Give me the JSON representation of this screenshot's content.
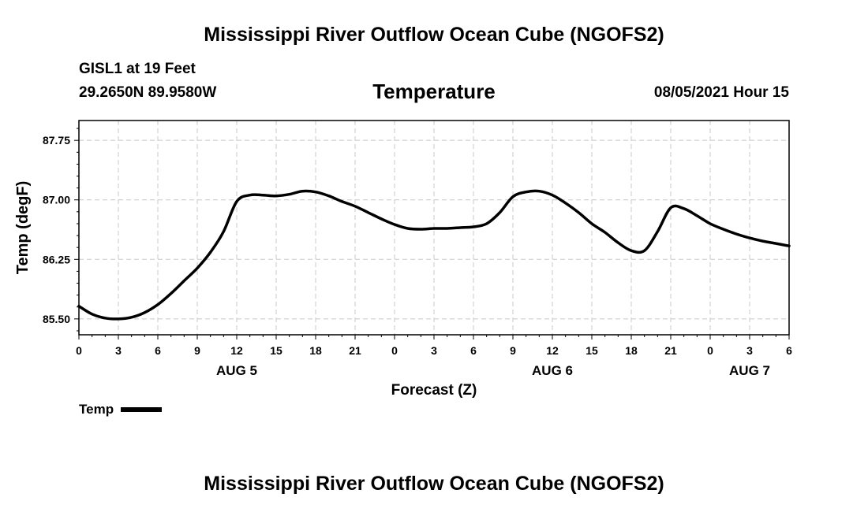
{
  "chart_data": {
    "type": "line",
    "title": "Mississippi River Outflow Ocean Cube (NGOFS2)",
    "footer_title": "Mississippi River Outflow Ocean Cube (NGOFS2)",
    "station": "GISL1 at 19 Feet",
    "coordinates": "29.2650N  89.9580W",
    "subtitle": "Temperature",
    "timestamp": "08/05/2021 Hour 15",
    "xlabel": "Forecast (Z)",
    "ylabel": "Temp (degF)",
    "xlim": [
      0,
      54
    ],
    "ylim": [
      85.3,
      88.0
    ],
    "x_tick_values": [
      0,
      3,
      6,
      9,
      12,
      15,
      18,
      21,
      24,
      27,
      30,
      33,
      36,
      39,
      42,
      45,
      48,
      51,
      54
    ],
    "x_tick_labels": [
      "0",
      "3",
      "6",
      "9",
      "12",
      "15",
      "18",
      "21",
      "0",
      "3",
      "6",
      "9",
      "12",
      "15",
      "18",
      "21",
      "0",
      "3",
      "6"
    ],
    "day_labels": [
      {
        "x": 12,
        "label": "AUG 5"
      },
      {
        "x": 36,
        "label": "AUG 6"
      },
      {
        "x": 51,
        "label": "AUG 7"
      }
    ],
    "y_tick_values": [
      85.5,
      86.25,
      87.0,
      87.75
    ],
    "y_tick_labels": [
      "85.50",
      "86.25",
      "87.00",
      "87.75"
    ],
    "grid": true,
    "legend_position": "bottom-left",
    "series": [
      {
        "name": "Temp",
        "color": "#000000",
        "x": [
          0,
          1,
          2,
          3,
          4,
          5,
          6,
          7,
          8,
          9,
          10,
          11,
          12,
          13,
          14,
          15,
          16,
          17,
          18,
          19,
          20,
          21,
          22,
          23,
          24,
          25,
          26,
          27,
          28,
          29,
          30,
          31,
          32,
          33,
          34,
          35,
          36,
          37,
          38,
          39,
          40,
          41,
          42,
          43,
          44,
          45,
          46,
          47,
          48,
          49,
          50,
          51,
          52,
          53,
          54
        ],
        "y": [
          85.66,
          85.56,
          85.51,
          85.5,
          85.52,
          85.58,
          85.68,
          85.82,
          85.98,
          86.14,
          86.34,
          86.6,
          86.98,
          87.06,
          87.06,
          87.05,
          87.07,
          87.11,
          87.1,
          87.05,
          86.98,
          86.92,
          86.84,
          86.76,
          86.69,
          86.64,
          86.63,
          86.64,
          86.64,
          86.65,
          86.66,
          86.7,
          86.84,
          87.04,
          87.1,
          87.11,
          87.06,
          86.96,
          86.84,
          86.7,
          86.59,
          86.46,
          86.36,
          86.36,
          86.6,
          86.9,
          86.89,
          86.8,
          86.7,
          86.63,
          86.57,
          86.52,
          86.48,
          86.45,
          86.42
        ]
      }
    ]
  }
}
